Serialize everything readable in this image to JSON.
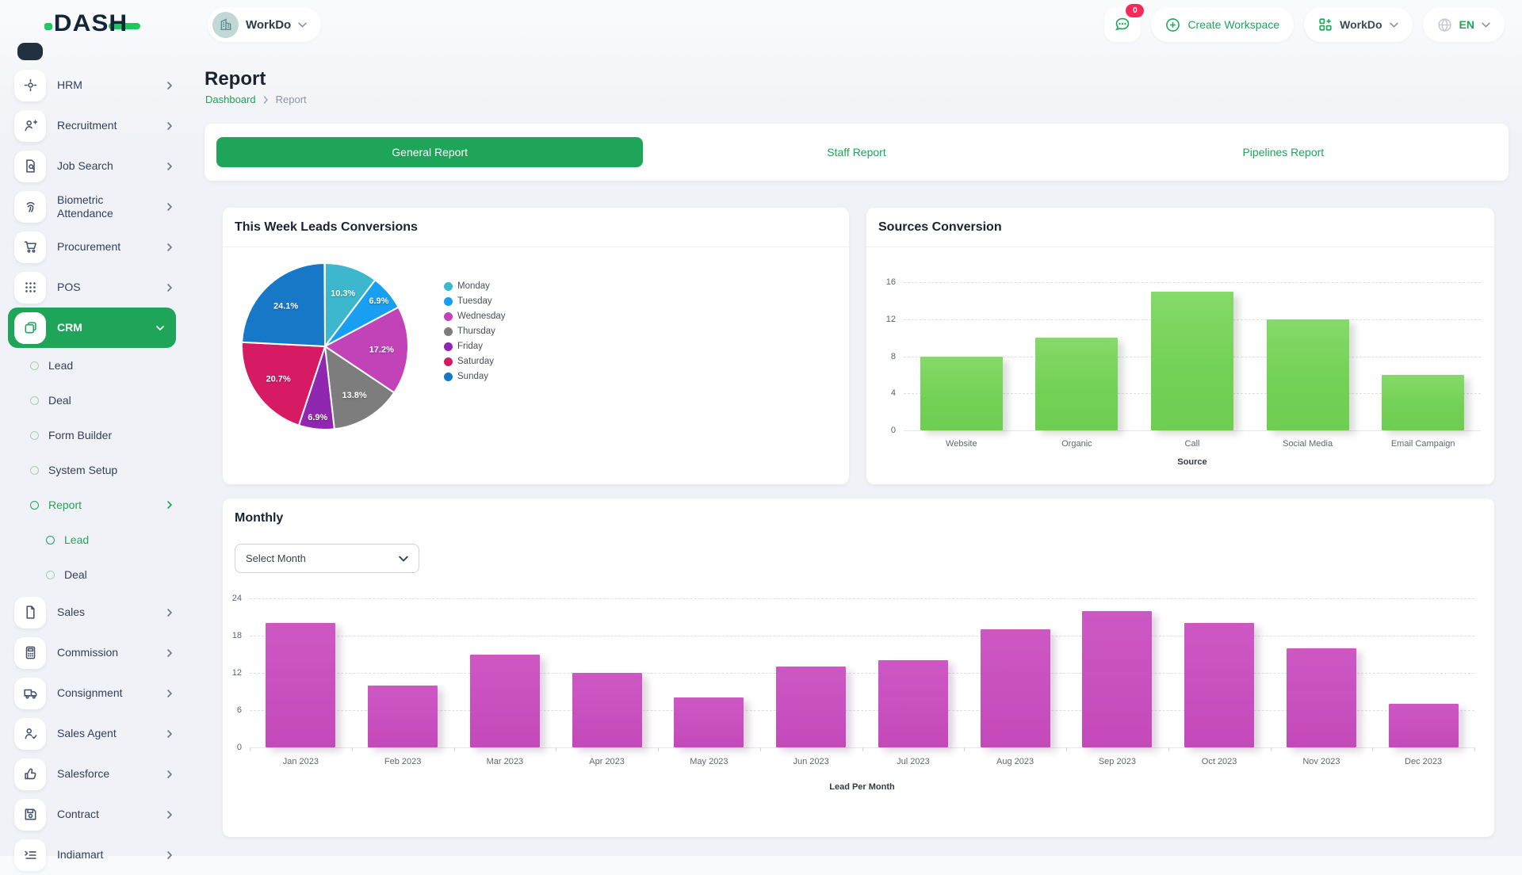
{
  "header": {
    "logo_text": "DASH",
    "workspace_label": "WorkDo",
    "messages_badge": "0",
    "create_workspace_label": "Create Workspace",
    "workdo_label": "WorkDo",
    "language": "EN"
  },
  "colors": {
    "accent_green": "#1ea559",
    "badge_pink": "#f8285a",
    "sources_bar": "#72d055",
    "monthly_bar": "#c94fc0"
  },
  "sidebar": {
    "items": [
      {
        "label": "HRM",
        "level": 1,
        "icon": "hrm",
        "chevron": "right"
      },
      {
        "label": "Recruitment",
        "level": 1,
        "icon": "recruitment",
        "chevron": "right"
      },
      {
        "label": "Job Search",
        "level": 1,
        "icon": "job-search",
        "chevron": "right"
      },
      {
        "label": "Biometric Attendance",
        "level": 1,
        "icon": "biometric",
        "chevron": "right"
      },
      {
        "label": "Procurement",
        "level": 1,
        "icon": "procurement",
        "chevron": "right"
      },
      {
        "label": "POS",
        "level": 1,
        "icon": "pos",
        "chevron": "right"
      },
      {
        "label": "CRM",
        "level": 1,
        "icon": "crm",
        "chevron": "down",
        "active": true
      },
      {
        "label": "Lead",
        "level": 2
      },
      {
        "label": "Deal",
        "level": 2
      },
      {
        "label": "Form Builder",
        "level": 2
      },
      {
        "label": "System Setup",
        "level": 2
      },
      {
        "label": "Report",
        "level": 2,
        "chevron": "right",
        "active": true
      },
      {
        "label": "Lead",
        "level": 3,
        "active": true
      },
      {
        "label": "Deal",
        "level": 3
      },
      {
        "label": "Sales",
        "level": 1,
        "icon": "sales",
        "chevron": "right"
      },
      {
        "label": "Commission",
        "level": 1,
        "icon": "commission",
        "chevron": "right"
      },
      {
        "label": "Consignment",
        "level": 1,
        "icon": "consignment",
        "chevron": "right"
      },
      {
        "label": "Sales Agent",
        "level": 1,
        "icon": "sales-agent",
        "chevron": "right"
      },
      {
        "label": "Salesforce",
        "level": 1,
        "icon": "salesforce",
        "chevron": "right"
      },
      {
        "label": "Contract",
        "level": 1,
        "icon": "contract",
        "chevron": "right"
      },
      {
        "label": "Indiamart",
        "level": 1,
        "icon": "indiamart",
        "chevron": "right"
      }
    ]
  },
  "page": {
    "title": "Report",
    "breadcrumb": [
      "Dashboard",
      "Report"
    ]
  },
  "tabs": [
    {
      "label": "General Report",
      "active": true
    },
    {
      "label": "Staff Report",
      "active": false
    },
    {
      "label": "Pipelines Report",
      "active": false
    }
  ],
  "controls": {
    "select_month_placeholder": "Select Month"
  },
  "chart_data": [
    {
      "type": "pie",
      "title": "This Week Leads Conversions",
      "labels": [
        "Monday",
        "Tuesday",
        "Wednesday",
        "Thursday",
        "Friday",
        "Saturday",
        "Sunday"
      ],
      "values_pct": [
        10.3,
        6.9,
        17.2,
        13.8,
        6.9,
        20.7,
        24.1
      ],
      "colors": [
        "#3cb7ce",
        "#189ff2",
        "#c243b8",
        "#7d7d7d",
        "#9027b0",
        "#d61b64",
        "#1878c8"
      ],
      "legend_position": "right",
      "start_angle_deg": -90,
      "direction": "clockwise"
    },
    {
      "type": "bar",
      "title": "Sources Conversion",
      "categories": [
        "Website",
        "Organic",
        "Call",
        "Social Media",
        "Email Campaign"
      ],
      "values": [
        8,
        10,
        15,
        12,
        6
      ],
      "xlabel": "Source",
      "ylabel": "",
      "ylim": [
        0,
        16
      ],
      "yticks": [
        0,
        4,
        8,
        12,
        16
      ],
      "grid": "dashed-horizontal",
      "bar_color": "#72d055"
    },
    {
      "type": "bar",
      "title": "Monthly",
      "categories": [
        "Jan 2023",
        "Feb 2023",
        "Mar 2023",
        "Apr 2023",
        "May 2023",
        "Jun 2023",
        "Jul 2023",
        "Aug 2023",
        "Sep 2023",
        "Oct 2023",
        "Nov 2023",
        "Dec 2023"
      ],
      "values": [
        20,
        10,
        15,
        12,
        8,
        13,
        14,
        19,
        22,
        20,
        16,
        7
      ],
      "xlabel": "Lead Per Month",
      "ylabel": "",
      "ylim": [
        0,
        24
      ],
      "yticks": [
        0,
        6,
        12,
        18,
        24
      ],
      "grid": "dashed-horizontal",
      "bar_color": "#c94fc0"
    }
  ]
}
